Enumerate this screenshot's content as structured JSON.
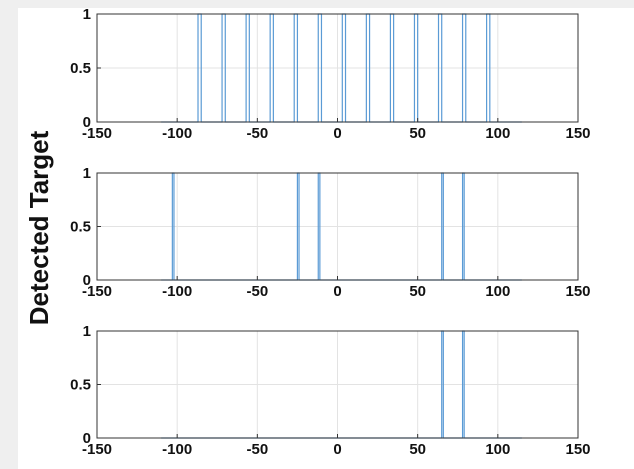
{
  "chart_data": [
    {
      "type": "line",
      "title": "",
      "xlabel": "",
      "ylabel": "Detected Target",
      "xlim": [
        -150,
        150
      ],
      "ylim": [
        0,
        1
      ],
      "x_ticks": [
        -150,
        -100,
        -50,
        0,
        50,
        100,
        150
      ],
      "y_ticks": [
        0,
        0.5,
        1
      ],
      "grid": true,
      "series": [
        {
          "color": "#5b9bd5",
          "data_range": [
            -110,
            115
          ],
          "pulses": [
            [
              -87,
              -85
            ],
            [
              -72,
              -70
            ],
            [
              -57,
              -55
            ],
            [
              -42,
              -40
            ],
            [
              -27,
              -25
            ],
            [
              -12,
              -10
            ],
            [
              3,
              5
            ],
            [
              18,
              20
            ],
            [
              33,
              35
            ],
            [
              48,
              50
            ],
            [
              63,
              65
            ],
            [
              78,
              80
            ],
            [
              93,
              95
            ]
          ]
        }
      ]
    },
    {
      "type": "line",
      "title": "",
      "xlabel": "",
      "ylabel": "Detected Target",
      "xlim": [
        -150,
        150
      ],
      "ylim": [
        0,
        1
      ],
      "x_ticks": [
        -150,
        -100,
        -50,
        0,
        50,
        100,
        150
      ],
      "y_ticks": [
        0,
        0.5,
        1
      ],
      "grid": true,
      "series": [
        {
          "color": "#5b9bd5",
          "data_range": [
            -110,
            115
          ],
          "pulses": [
            [
              -103,
              -102
            ],
            [
              -25,
              -24
            ],
            [
              -12,
              -11
            ],
            [
              65,
              66
            ],
            [
              78,
              79
            ]
          ]
        }
      ]
    },
    {
      "type": "line",
      "title": "",
      "xlabel": "",
      "ylabel": "Detected Target",
      "xlim": [
        -150,
        150
      ],
      "ylim": [
        0,
        1
      ],
      "x_ticks": [
        -150,
        -100,
        -50,
        0,
        50,
        100,
        150
      ],
      "y_ticks": [
        0,
        0.5,
        1
      ],
      "grid": true,
      "series": [
        {
          "color": "#5b9bd5",
          "data_range": [
            -110,
            115
          ],
          "pulses": [
            [
              65,
              66
            ],
            [
              78,
              79
            ]
          ]
        }
      ]
    }
  ],
  "colors": {
    "axes": "#333333",
    "grid": "#e3e3e3",
    "series": "#5b9bd5",
    "figure_bg": "#ffffff",
    "page_bg": "#efefef"
  }
}
